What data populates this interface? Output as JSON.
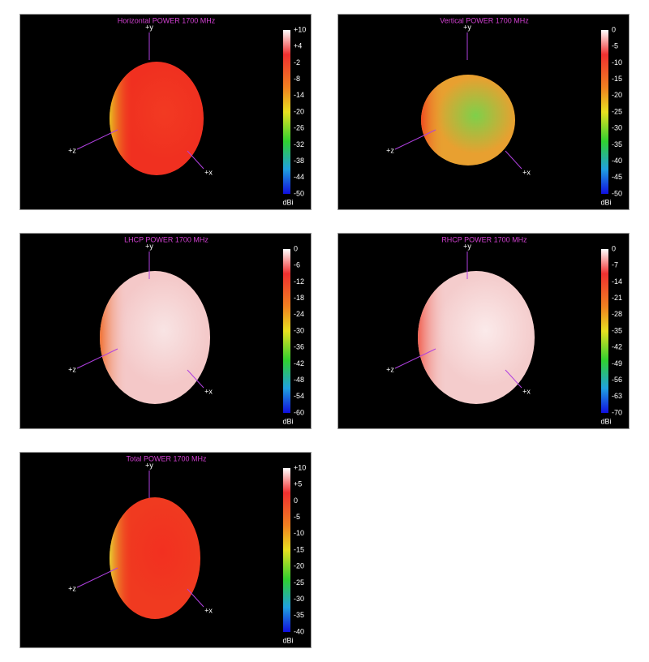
{
  "panels": [
    {
      "title": "Horizontal POWER 1700  MHz",
      "axes": [
        "+y",
        "+z",
        "+x"
      ],
      "scale": [
        "+10",
        "+4",
        "-2",
        "-8",
        "-14",
        "-20",
        "-26",
        "-32",
        "-38",
        "-44",
        "-50"
      ],
      "unit": "dBi"
    },
    {
      "title": "Vertical POWER 1700  MHz",
      "axes": [
        "+y",
        "+z",
        "+x"
      ],
      "scale": [
        "0",
        "-5",
        "-10",
        "-15",
        "-20",
        "-25",
        "-30",
        "-35",
        "-40",
        "-45",
        "-50"
      ],
      "unit": "dBi"
    },
    {
      "title": "LHCP POWER 1700  MHz",
      "axes": [
        "+y",
        "+z",
        "+x"
      ],
      "scale": [
        "0",
        "-6",
        "-12",
        "-18",
        "-24",
        "-30",
        "-36",
        "-42",
        "-48",
        "-54",
        "-60"
      ],
      "unit": "dBi"
    },
    {
      "title": "RHCP POWER 1700  MHz",
      "axes": [
        "+y",
        "+z",
        "+x"
      ],
      "scale": [
        "0",
        "-7",
        "-14",
        "-21",
        "-28",
        "-35",
        "-42",
        "-49",
        "-56",
        "-63",
        "-70"
      ],
      "unit": "dBi"
    },
    {
      "title": "Total POWER 1700  MHz",
      "axes": [
        "+y",
        "+z",
        "+x"
      ],
      "scale": [
        "+10",
        "+5",
        "0",
        "-5",
        "-10",
        "-15",
        "-20",
        "-25",
        "-30",
        "-35",
        "-40"
      ],
      "unit": "dBi"
    }
  ]
}
